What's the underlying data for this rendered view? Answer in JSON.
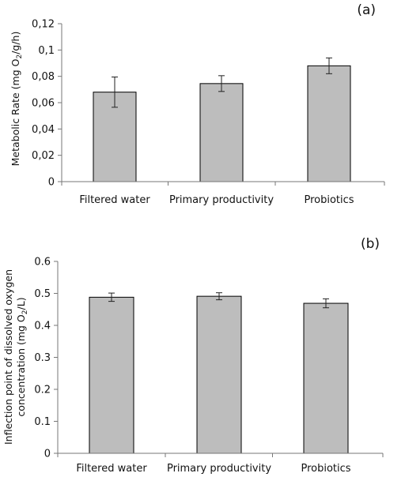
{
  "chart_data": [
    {
      "type": "bar",
      "panel_label": "(a)",
      "categories": [
        "Filtered water",
        "Primary productivity",
        "Probiotics"
      ],
      "values": [
        0.068,
        0.0745,
        0.088
      ],
      "errors": [
        0.0115,
        0.006,
        0.006
      ],
      "ylabel": "Metabolic Rate (mg O",
      "ylabel_sub": "2",
      "ylabel_end": "/g/h)",
      "ylim": [
        0,
        0.12
      ],
      "yticks": [
        0,
        0.02,
        0.04,
        0.06,
        0.08,
        0.1,
        0.12
      ],
      "ytick_labels": [
        "0",
        "0,02",
        "0,04",
        "0,06",
        "0,08",
        "0,1",
        "0,12"
      ],
      "grid": false
    },
    {
      "type": "bar",
      "panel_label": "(b)",
      "categories": [
        "Filtered water",
        "Primary productivity",
        "Probiotics"
      ],
      "values": [
        0.488,
        0.491,
        0.469
      ],
      "errors": [
        0.013,
        0.011,
        0.014
      ],
      "ylabel_line1": "Inflection point of dissolved oxygen",
      "ylabel_line2": "concentration (mg O",
      "ylabel_sub": "2",
      "ylabel_end": "/L)",
      "ylim": [
        0,
        0.6
      ],
      "yticks": [
        0,
        0.1,
        0.2,
        0.3,
        0.4,
        0.5,
        0.6
      ],
      "ytick_labels": [
        "0",
        "0.1",
        "0.2",
        "0.3",
        "0.4",
        "0.5",
        "0.6"
      ],
      "grid": false
    }
  ]
}
